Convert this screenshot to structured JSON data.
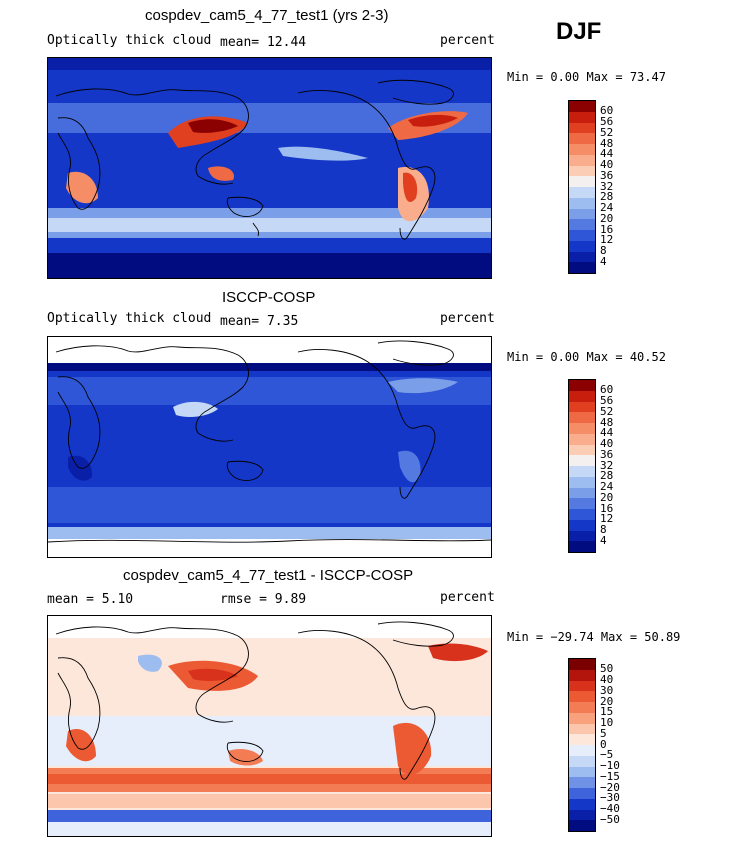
{
  "season": "DJF",
  "panels": [
    {
      "title": "cospdev_cam5_4_77_test1 (yrs 2-3)",
      "left_label": "Optically thick cloud",
      "mid_label": "mean=   12.44",
      "right_label": "percent",
      "range": "Min =   0.00 Max =  73.47",
      "ticks": [
        "60",
        "56",
        "52",
        "48",
        "44",
        "40",
        "36",
        "32",
        "28",
        "24",
        "20",
        "16",
        "12",
        "8",
        "4"
      ],
      "colors": [
        "#8b0000",
        "#c81e0e",
        "#e0401f",
        "#ef6a44",
        "#f58d66",
        "#f9ad8c",
        "#fbcdb4",
        "#f3f0ef",
        "#c5d8f6",
        "#9dbcef",
        "#7a9ee8",
        "#5479e0",
        "#2f56d6",
        "#1437c8",
        "#0a1fa8",
        "#000c80"
      ]
    },
    {
      "title": "ISCCP-COSP",
      "left_label": "Optically thick cloud",
      "mid_label": "mean=    7.35",
      "right_label": "percent",
      "range": "Min =   0.00 Max =  40.52",
      "ticks": [
        "60",
        "56",
        "52",
        "48",
        "44",
        "40",
        "36",
        "32",
        "28",
        "24",
        "20",
        "16",
        "12",
        "8",
        "4"
      ],
      "colors": [
        "#8b0000",
        "#c81e0e",
        "#e0401f",
        "#ef6a44",
        "#f58d66",
        "#f9ad8c",
        "#fbcdb4",
        "#f3f0ef",
        "#c5d8f6",
        "#9dbcef",
        "#7a9ee8",
        "#5479e0",
        "#2f56d6",
        "#1437c8",
        "#0a1fa8",
        "#000c80"
      ]
    },
    {
      "title": "cospdev_cam5_4_77_test1 - ISCCP-COSP",
      "left_label": "mean =    5.10",
      "mid_label": "rmse =    9.89",
      "right_label": "percent",
      "range": "Min = −29.74 Max =  50.89",
      "ticks": [
        "50",
        "40",
        "30",
        "20",
        "15",
        "10",
        "5",
        "0",
        "−5",
        "−10",
        "−15",
        "−20",
        "−30",
        "−40",
        "−50"
      ],
      "colors": [
        "#7a0000",
        "#b3140b",
        "#d8321c",
        "#ec5a33",
        "#f47c55",
        "#f9a07c",
        "#fcc6ad",
        "#fde6da",
        "#e6eefb",
        "#c5d8f6",
        "#9dbcef",
        "#6f91e6",
        "#3f63da",
        "#1437c8",
        "#0a1fa8",
        "#000c80"
      ]
    }
  ]
}
